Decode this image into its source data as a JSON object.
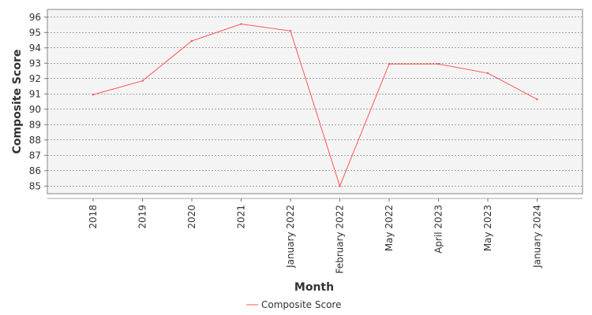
{
  "chart_data": {
    "type": "line",
    "title": "",
    "xlabel": "Month",
    "ylabel": "Composite Score",
    "categories": [
      "2018",
      "2019",
      "2020",
      "2021",
      "January 2022",
      "February 2022",
      "May 2022",
      "April 2023",
      "May 2023",
      "January 2024"
    ],
    "series": [
      {
        "name": "Composite Score",
        "color": "#ff5555",
        "values": [
          90.95,
          91.85,
          94.45,
          95.55,
          95.1,
          85.0,
          92.95,
          92.95,
          92.35,
          90.65
        ]
      }
    ],
    "ylim": [
      84.5,
      96.5
    ],
    "yticks": [
      85,
      86,
      87,
      88,
      89,
      90,
      91,
      92,
      93,
      94,
      95,
      96
    ],
    "grid": true,
    "legend_position": "bottom",
    "plot_background": "#f4f4f4"
  }
}
